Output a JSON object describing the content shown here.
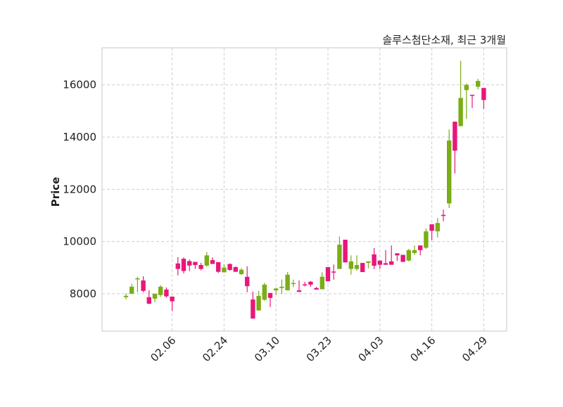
{
  "chart_data": {
    "type": "candlestick",
    "title": "솔루스첨단소재, 최근 3개월",
    "xlabel": "",
    "ylabel": "Price",
    "ylim": [
      6570,
      17420
    ],
    "yticks": [
      8000,
      10000,
      12000,
      14000,
      16000
    ],
    "grid": true,
    "colors": {
      "up": "#7aad17",
      "down": "#e8177c"
    },
    "xticks": [
      {
        "index": 8,
        "label": "02.06"
      },
      {
        "index": 17,
        "label": "02.24"
      },
      {
        "index": 26,
        "label": "03.10"
      },
      {
        "index": 35,
        "label": "03.23"
      },
      {
        "index": 44,
        "label": "04.03"
      },
      {
        "index": 53,
        "label": "04.16"
      },
      {
        "index": 62,
        "label": "04.29"
      }
    ],
    "ohlc_fields": [
      "open",
      "high",
      "low",
      "close"
    ],
    "ohlc": [
      [
        7870,
        8010,
        7780,
        7920
      ],
      [
        8000,
        8380,
        7990,
        8270
      ],
      [
        8570,
        8650,
        8060,
        8590
      ],
      [
        8510,
        8670,
        8060,
        8110
      ],
      [
        7870,
        8130,
        7600,
        7620
      ],
      [
        7810,
        8010,
        7680,
        8000
      ],
      [
        7950,
        8330,
        7880,
        8270
      ],
      [
        8160,
        8240,
        7850,
        7900
      ],
      [
        7890,
        7890,
        7340,
        7710
      ],
      [
        9160,
        9400,
        8700,
        8950
      ],
      [
        9340,
        9390,
        8780,
        8870
      ],
      [
        9250,
        9310,
        8870,
        9080
      ],
      [
        9220,
        9220,
        8950,
        9100
      ],
      [
        9100,
        9180,
        8900,
        8950
      ],
      [
        9080,
        9600,
        9040,
        9470
      ],
      [
        9290,
        9400,
        9140,
        9140
      ],
      [
        9210,
        9210,
        8790,
        8840
      ],
      [
        8820,
        9130,
        8820,
        9000
      ],
      [
        9140,
        9160,
        8880,
        8910
      ],
      [
        9020,
        9050,
        8840,
        8840
      ],
      [
        8750,
        8980,
        8720,
        8920
      ],
      [
        8650,
        9050,
        8060,
        8290
      ],
      [
        7780,
        8080,
        7050,
        7050
      ],
      [
        7360,
        8110,
        7360,
        7920
      ],
      [
        7770,
        8420,
        7730,
        8350
      ],
      [
        8030,
        8030,
        7490,
        7840
      ],
      [
        8130,
        8230,
        7970,
        8200
      ],
      [
        8220,
        8540,
        8000,
        8270
      ],
      [
        8130,
        8830,
        8130,
        8730
      ],
      [
        8390,
        8540,
        8250,
        8410
      ],
      [
        8130,
        8510,
        8070,
        8070
      ],
      [
        8360,
        8460,
        8280,
        8340
      ],
      [
        8460,
        8490,
        8270,
        8350
      ],
      [
        8220,
        8260,
        8150,
        8160
      ],
      [
        8170,
        8820,
        8170,
        8650
      ],
      [
        9020,
        9020,
        8480,
        8480
      ],
      [
        8850,
        9120,
        8540,
        8830
      ],
      [
        8950,
        10190,
        8950,
        9880
      ],
      [
        10070,
        10070,
        9200,
        9200
      ],
      [
        8950,
        9470,
        8730,
        9240
      ],
      [
        8950,
        9470,
        8880,
        9100
      ],
      [
        9180,
        9180,
        8830,
        8830
      ],
      [
        9180,
        9240,
        8970,
        9240
      ],
      [
        9510,
        9750,
        8940,
        9070
      ],
      [
        9270,
        9270,
        8950,
        9110
      ],
      [
        9170,
        9670,
        9110,
        9110
      ],
      [
        9240,
        9850,
        9110,
        9110
      ],
      [
        9550,
        9550,
        9260,
        9470
      ],
      [
        9490,
        9490,
        9220,
        9220
      ],
      [
        9270,
        9720,
        9240,
        9670
      ],
      [
        9560,
        9850,
        9480,
        9670
      ],
      [
        9850,
        9850,
        9480,
        9670
      ],
      [
        9760,
        10500,
        9720,
        10390
      ],
      [
        10660,
        10660,
        10050,
        10410
      ],
      [
        10390,
        10900,
        10150,
        10710
      ],
      [
        11020,
        11220,
        10780,
        10980
      ],
      [
        11460,
        14290,
        11280,
        13870
      ],
      [
        14590,
        14590,
        12610,
        13480
      ],
      [
        14420,
        16920,
        14420,
        15500
      ],
      [
        15800,
        16050,
        14700,
        16000
      ],
      [
        15620,
        15620,
        15110,
        15580
      ],
      [
        15930,
        16230,
        15830,
        16150
      ],
      [
        15880,
        15880,
        15080,
        15420
      ]
    ]
  }
}
